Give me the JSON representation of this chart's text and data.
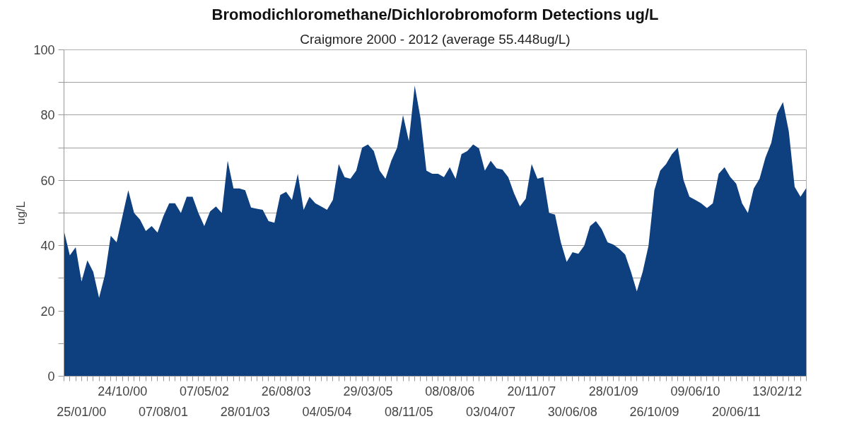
{
  "chart_data": {
    "type": "area",
    "title": "Bromodichloromethane/Dichlorobromoform Detections ug/L",
    "subtitle": "Craigmore 2000 - 2012 (average 55.448ug/L)",
    "ylabel": "ug/L",
    "categories": [
      null,
      null,
      null,
      "25/01/00",
      null,
      null,
      null,
      null,
      null,
      null,
      "24/10/00",
      null,
      null,
      null,
      null,
      null,
      null,
      "07/08/01",
      null,
      null,
      null,
      null,
      null,
      null,
      "07/05/02",
      null,
      null,
      null,
      null,
      null,
      null,
      "28/01/03",
      null,
      null,
      null,
      null,
      null,
      null,
      "26/08/03",
      null,
      null,
      null,
      null,
      null,
      null,
      "04/05/04",
      null,
      null,
      null,
      null,
      null,
      null,
      "29/03/05",
      null,
      null,
      null,
      null,
      null,
      null,
      "08/11/05",
      null,
      null,
      null,
      null,
      null,
      null,
      "08/08/06",
      null,
      null,
      null,
      null,
      null,
      null,
      "03/04/07",
      null,
      null,
      null,
      null,
      null,
      null,
      "20/11/07",
      null,
      null,
      null,
      null,
      null,
      null,
      "30/06/08",
      null,
      null,
      null,
      null,
      null,
      null,
      "28/01/09",
      null,
      null,
      null,
      null,
      null,
      null,
      "26/10/09",
      null,
      null,
      null,
      null,
      null,
      null,
      "09/06/10",
      null,
      null,
      null,
      null,
      null,
      null,
      "20/06/11",
      null,
      null,
      null,
      null,
      null,
      null,
      "13/02/12",
      null,
      null,
      null,
      null,
      null
    ],
    "series": [
      {
        "color": "#0e3f7f",
        "values": [
          44.5,
          37,
          39.5,
          29,
          35.5,
          32,
          24,
          31,
          43,
          41,
          49,
          57,
          50,
          48,
          44.5,
          46,
          44,
          49,
          53,
          53,
          50,
          55,
          55,
          50,
          46,
          50.5,
          52,
          50,
          66,
          57.5,
          57.5,
          57,
          51.7,
          51.3,
          51,
          47.5,
          47,
          55.5,
          56.5,
          54,
          62,
          51,
          55,
          53,
          52,
          51,
          54,
          65,
          61,
          60.5,
          63,
          70,
          71,
          69,
          63,
          60.5,
          66,
          70,
          80,
          72,
          89,
          79,
          63,
          62,
          62,
          61,
          64,
          60.5,
          68,
          69,
          71,
          69.8,
          63,
          66,
          63.7,
          63.3,
          61,
          56,
          52,
          54.4,
          65,
          60.5,
          61,
          50,
          49.5,
          41,
          35,
          38,
          37.5,
          40,
          46,
          47.5,
          45,
          41,
          40.3,
          39,
          37.3,
          32,
          26,
          32,
          40,
          57,
          63,
          65,
          68,
          70,
          60,
          55,
          54,
          53,
          51.5,
          53,
          62,
          64,
          61,
          59,
          53,
          50,
          57.5,
          60.5,
          67,
          71.5,
          80.5,
          84,
          75,
          58,
          55,
          57.7
        ]
      }
    ],
    "ylim": [
      0,
      100
    ],
    "yticks": [
      0,
      {
        "value": 10,
        "label": null
      },
      20,
      {
        "value": 30,
        "label": null
      },
      40,
      {
        "value": 50,
        "label": null
      },
      60,
      {
        "value": 70,
        "label": null
      },
      80,
      {
        "value": 90,
        "label": null
      },
      100
    ],
    "grid": "y"
  }
}
